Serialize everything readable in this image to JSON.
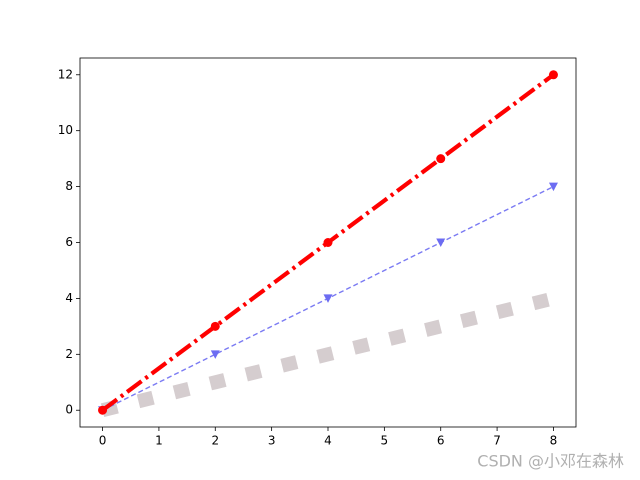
{
  "chart_data": {
    "type": "line",
    "x": [
      0,
      2,
      4,
      6,
      8
    ],
    "series": [
      {
        "color": "#d5cdcf",
        "linestyle": "dotted",
        "linewidth": 10,
        "marker": "none",
        "values": [
          0,
          1,
          2,
          3,
          4
        ]
      },
      {
        "color": "#6c6cf2",
        "linestyle": "dashed",
        "linewidth": 1,
        "marker": "triangle-down",
        "values": [
          0,
          2,
          4,
          6,
          8
        ]
      },
      {
        "color": "#ff0000",
        "linestyle": "dashdot",
        "linewidth": 3,
        "marker": "circle",
        "values": [
          0,
          3,
          6,
          9,
          12
        ]
      }
    ],
    "xlim": [
      -0.4,
      8.4
    ],
    "xticks": [
      0,
      1,
      2,
      3,
      4,
      5,
      6,
      7,
      8
    ],
    "ylim": [
      -0.6,
      12.6
    ],
    "yticks": [
      0,
      2,
      4,
      6,
      8,
      10,
      12
    ],
    "grid": false,
    "watermark": "CSDN @小邓在森林"
  }
}
